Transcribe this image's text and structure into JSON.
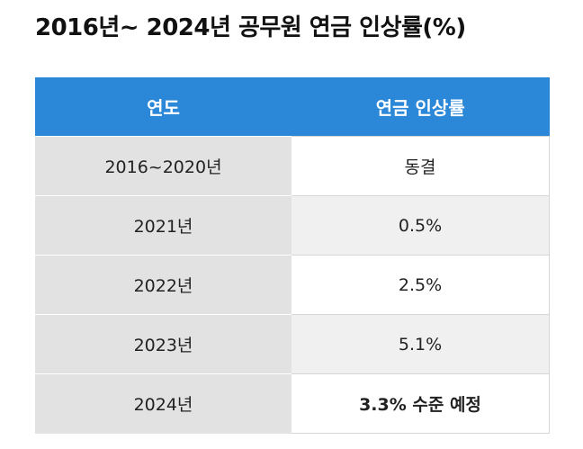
{
  "title": "2016년~ 2024년 공무원 연금 인상률(%)",
  "table": {
    "headers": [
      "연도",
      "연금 인상률"
    ],
    "rows": [
      {
        "year": "2016~2020년",
        "rate": "동결"
      },
      {
        "year": "2021년",
        "rate": "0.5%"
      },
      {
        "year": "2022년",
        "rate": "2.5%"
      },
      {
        "year": "2023년",
        "rate": "5.1%"
      },
      {
        "year": "2024년",
        "rate": "3.3% 수준 예정"
      }
    ]
  },
  "colors": {
    "header_bg": "#2b87d8",
    "year_col_bg": "#e2e2e2",
    "highlight": "#e0322b"
  }
}
